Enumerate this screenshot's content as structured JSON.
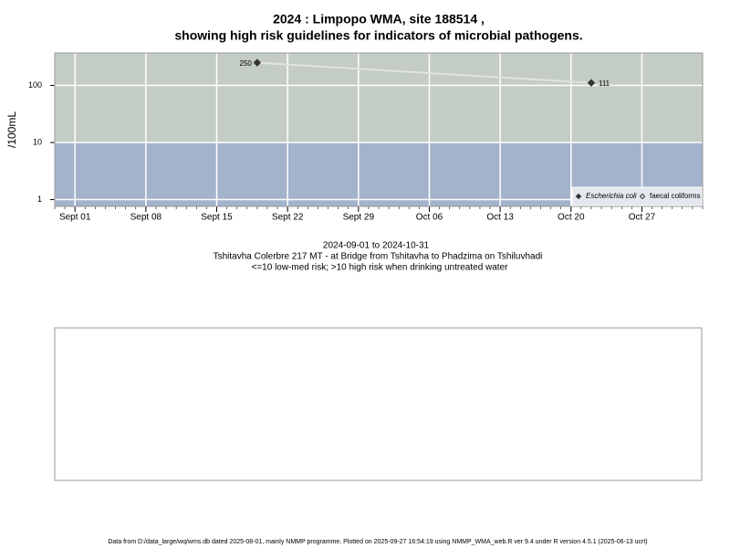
{
  "chart_data": {
    "type": "line",
    "title": "2024 : Limpopo WMA, site 188514 ,",
    "subtitle": "showing high risk guidelines for indicators of microbial pathogens.",
    "y_label": "/100mL",
    "x": [
      "2024-09-19",
      "2024-10-22"
    ],
    "series": [
      {
        "name": "Escherichia coli",
        "color": "#333333",
        "values": [
          250,
          111
        ]
      },
      {
        "name": "faecal coliforms",
        "color": "#333333",
        "values": [
          null,
          null
        ]
      }
    ],
    "line_color": "#e2e2e2",
    "log_y": true,
    "ylim": [
      0.76,
      370
    ],
    "yticks": [
      1,
      10,
      100
    ],
    "xlim": [
      "2024-08-30",
      "2024-11-02"
    ],
    "xticks": [
      {
        "value": "2024-09-01",
        "label": "Sept 01"
      },
      {
        "value": "2024-09-08",
        "label": "Sept 08"
      },
      {
        "value": "2024-09-15",
        "label": "Sept 15"
      },
      {
        "value": "2024-09-22",
        "label": "Sept 22"
      },
      {
        "value": "2024-09-29",
        "label": "Sept 29"
      },
      {
        "value": "2024-10-06",
        "label": "Oct 06"
      },
      {
        "value": "2024-10-13",
        "label": "Oct 13"
      },
      {
        "value": "2024-10-20",
        "label": "Oct 20"
      },
      {
        "value": "2024-10-27",
        "label": "Oct 27"
      }
    ],
    "threshold": 10,
    "band_colors": {
      "high": "#c3cdc3",
      "low": "#a3b3cc"
    },
    "grid": true,
    "legend": "bottom-right",
    "date_range": "2024-09-01 to 2024-10-31",
    "site": "Tshitavha Colerbre 217 MT - at Bridge from Tshitavha to Phadzima on Tshiluvhadi",
    "note": "<=10 low-med risk; >10 high risk when drinking untreated water",
    "footer": "Data from D:/data_large/wq/wms.db dated 2025-08-01, mainly NMMP programme. Plotted on 2025-09-27 16:54:19 using NMMP_WMA_web.R ver 9.4 under R version 4.5.1 (2025-06-13 ucrt)"
  }
}
